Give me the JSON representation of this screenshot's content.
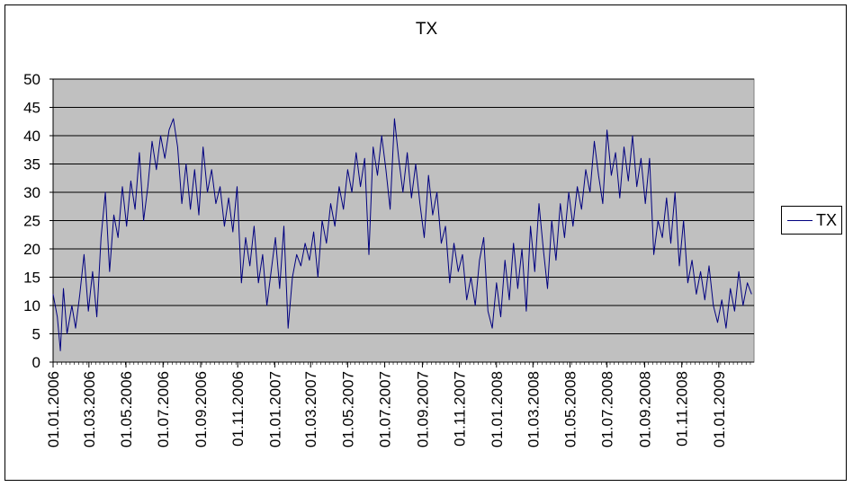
{
  "chart_data": {
    "type": "line",
    "title": "TX",
    "xlabel": "",
    "ylabel": "",
    "ylim": [
      0,
      50
    ],
    "yticks": [
      0,
      5,
      10,
      15,
      20,
      25,
      30,
      35,
      40,
      45,
      50
    ],
    "xlim": [
      "2006-01-01",
      "2009-02-28"
    ],
    "x_tick_labels": [
      "01.01.2006",
      "01.03.2006",
      "01.05.2006",
      "01.07.2006",
      "01.09.2006",
      "01.11.2006",
      "01.01.2007",
      "01.03.2007",
      "01.05.2007",
      "01.07.2007",
      "01.09.2007",
      "01.11.2007",
      "01.01.2008",
      "01.03.2008",
      "01.05.2008",
      "01.07.2008",
      "01.09.2008",
      "01.11.2008",
      "01.01.2009"
    ],
    "x_tick_dates": [
      "2006-01-01",
      "2006-03-01",
      "2006-05-01",
      "2006-07-01",
      "2006-09-01",
      "2006-11-01",
      "2007-01-01",
      "2007-03-01",
      "2007-05-01",
      "2007-07-01",
      "2007-09-01",
      "2007-11-01",
      "2008-01-01",
      "2008-03-01",
      "2008-05-01",
      "2008-07-01",
      "2008-09-01",
      "2008-11-01",
      "2009-01-01"
    ],
    "grid": "horizontal",
    "plot_background": "#c0c0c0",
    "legend_position": "right",
    "series": [
      {
        "name": "TX",
        "color": "#00007f",
        "points": [
          [
            "2006-01-01",
            12
          ],
          [
            "2006-01-08",
            8
          ],
          [
            "2006-01-13",
            2
          ],
          [
            "2006-01-18",
            13
          ],
          [
            "2006-01-24",
            5
          ],
          [
            "2006-02-01",
            10
          ],
          [
            "2006-02-07",
            6
          ],
          [
            "2006-02-14",
            12
          ],
          [
            "2006-02-21",
            19
          ],
          [
            "2006-02-28",
            9
          ],
          [
            "2006-03-07",
            16
          ],
          [
            "2006-03-14",
            8
          ],
          [
            "2006-03-21",
            22
          ],
          [
            "2006-03-28",
            30
          ],
          [
            "2006-04-04",
            16
          ],
          [
            "2006-04-11",
            26
          ],
          [
            "2006-04-18",
            22
          ],
          [
            "2006-04-25",
            31
          ],
          [
            "2006-05-02",
            24
          ],
          [
            "2006-05-09",
            32
          ],
          [
            "2006-05-16",
            27
          ],
          [
            "2006-05-23",
            37
          ],
          [
            "2006-05-30",
            25
          ],
          [
            "2006-06-06",
            31
          ],
          [
            "2006-06-13",
            39
          ],
          [
            "2006-06-20",
            34
          ],
          [
            "2006-06-27",
            40
          ],
          [
            "2006-07-04",
            36
          ],
          [
            "2006-07-11",
            41
          ],
          [
            "2006-07-18",
            43
          ],
          [
            "2006-07-25",
            38
          ],
          [
            "2006-08-01",
            28
          ],
          [
            "2006-08-08",
            35
          ],
          [
            "2006-08-15",
            27
          ],
          [
            "2006-08-22",
            34
          ],
          [
            "2006-08-29",
            26
          ],
          [
            "2006-09-05",
            38
          ],
          [
            "2006-09-12",
            30
          ],
          [
            "2006-09-19",
            34
          ],
          [
            "2006-09-26",
            28
          ],
          [
            "2006-10-03",
            31
          ],
          [
            "2006-10-10",
            24
          ],
          [
            "2006-10-17",
            29
          ],
          [
            "2006-10-24",
            23
          ],
          [
            "2006-10-31",
            31
          ],
          [
            "2006-11-07",
            14
          ],
          [
            "2006-11-14",
            22
          ],
          [
            "2006-11-21",
            17
          ],
          [
            "2006-11-28",
            24
          ],
          [
            "2006-12-05",
            14
          ],
          [
            "2006-12-12",
            19
          ],
          [
            "2006-12-19",
            10
          ],
          [
            "2006-12-26",
            16
          ],
          [
            "2007-01-02",
            22
          ],
          [
            "2007-01-09",
            13
          ],
          [
            "2007-01-16",
            24
          ],
          [
            "2007-01-23",
            6
          ],
          [
            "2007-01-30",
            15
          ],
          [
            "2007-02-06",
            19
          ],
          [
            "2007-02-13",
            17
          ],
          [
            "2007-02-20",
            21
          ],
          [
            "2007-02-27",
            18
          ],
          [
            "2007-03-06",
            23
          ],
          [
            "2007-03-13",
            15
          ],
          [
            "2007-03-20",
            25
          ],
          [
            "2007-03-27",
            21
          ],
          [
            "2007-04-03",
            28
          ],
          [
            "2007-04-10",
            24
          ],
          [
            "2007-04-17",
            31
          ],
          [
            "2007-04-24",
            27
          ],
          [
            "2007-05-01",
            34
          ],
          [
            "2007-05-08",
            30
          ],
          [
            "2007-05-15",
            37
          ],
          [
            "2007-05-22",
            31
          ],
          [
            "2007-05-29",
            36
          ],
          [
            "2007-06-05",
            19
          ],
          [
            "2007-06-12",
            38
          ],
          [
            "2007-06-19",
            33
          ],
          [
            "2007-06-26",
            40
          ],
          [
            "2007-07-03",
            34
          ],
          [
            "2007-07-10",
            27
          ],
          [
            "2007-07-17",
            43
          ],
          [
            "2007-07-24",
            36
          ],
          [
            "2007-07-31",
            30
          ],
          [
            "2007-08-07",
            37
          ],
          [
            "2007-08-14",
            29
          ],
          [
            "2007-08-21",
            35
          ],
          [
            "2007-08-28",
            28
          ],
          [
            "2007-09-04",
            22
          ],
          [
            "2007-09-11",
            33
          ],
          [
            "2007-09-18",
            26
          ],
          [
            "2007-09-25",
            30
          ],
          [
            "2007-10-02",
            21
          ],
          [
            "2007-10-09",
            24
          ],
          [
            "2007-10-16",
            14
          ],
          [
            "2007-10-23",
            21
          ],
          [
            "2007-10-30",
            16
          ],
          [
            "2007-11-06",
            19
          ],
          [
            "2007-11-13",
            11
          ],
          [
            "2007-11-20",
            15
          ],
          [
            "2007-11-27",
            10
          ],
          [
            "2007-12-04",
            18
          ],
          [
            "2007-12-11",
            22
          ],
          [
            "2007-12-18",
            9
          ],
          [
            "2007-12-25",
            6
          ],
          [
            "2008-01-01",
            14
          ],
          [
            "2008-01-08",
            8
          ],
          [
            "2008-01-15",
            18
          ],
          [
            "2008-01-22",
            11
          ],
          [
            "2008-01-29",
            21
          ],
          [
            "2008-02-05",
            13
          ],
          [
            "2008-02-12",
            20
          ],
          [
            "2008-02-19",
            9
          ],
          [
            "2008-02-26",
            24
          ],
          [
            "2008-03-04",
            16
          ],
          [
            "2008-03-11",
            28
          ],
          [
            "2008-03-18",
            20
          ],
          [
            "2008-03-25",
            13
          ],
          [
            "2008-04-01",
            25
          ],
          [
            "2008-04-08",
            18
          ],
          [
            "2008-04-15",
            28
          ],
          [
            "2008-04-22",
            22
          ],
          [
            "2008-04-29",
            30
          ],
          [
            "2008-05-06",
            24
          ],
          [
            "2008-05-13",
            31
          ],
          [
            "2008-05-20",
            27
          ],
          [
            "2008-05-27",
            34
          ],
          [
            "2008-06-03",
            30
          ],
          [
            "2008-06-10",
            39
          ],
          [
            "2008-06-17",
            33
          ],
          [
            "2008-06-24",
            28
          ],
          [
            "2008-07-01",
            41
          ],
          [
            "2008-07-08",
            33
          ],
          [
            "2008-07-15",
            37
          ],
          [
            "2008-07-22",
            29
          ],
          [
            "2008-07-29",
            38
          ],
          [
            "2008-08-05",
            32
          ],
          [
            "2008-08-12",
            40
          ],
          [
            "2008-08-19",
            31
          ],
          [
            "2008-08-26",
            36
          ],
          [
            "2008-09-02",
            28
          ],
          [
            "2008-09-09",
            36
          ],
          [
            "2008-09-16",
            19
          ],
          [
            "2008-09-23",
            25
          ],
          [
            "2008-09-30",
            22
          ],
          [
            "2008-10-07",
            29
          ],
          [
            "2008-10-14",
            21
          ],
          [
            "2008-10-21",
            30
          ],
          [
            "2008-10-28",
            17
          ],
          [
            "2008-11-04",
            25
          ],
          [
            "2008-11-11",
            14
          ],
          [
            "2008-11-18",
            18
          ],
          [
            "2008-11-25",
            12
          ],
          [
            "2008-12-02",
            16
          ],
          [
            "2008-12-09",
            11
          ],
          [
            "2008-12-16",
            17
          ],
          [
            "2008-12-23",
            10
          ],
          [
            "2008-12-30",
            7
          ],
          [
            "2009-01-06",
            11
          ],
          [
            "2009-01-13",
            6
          ],
          [
            "2009-01-20",
            13
          ],
          [
            "2009-01-27",
            9
          ],
          [
            "2009-02-03",
            16
          ],
          [
            "2009-02-10",
            10
          ],
          [
            "2009-02-17",
            14
          ],
          [
            "2009-02-24",
            12
          ]
        ]
      }
    ]
  }
}
